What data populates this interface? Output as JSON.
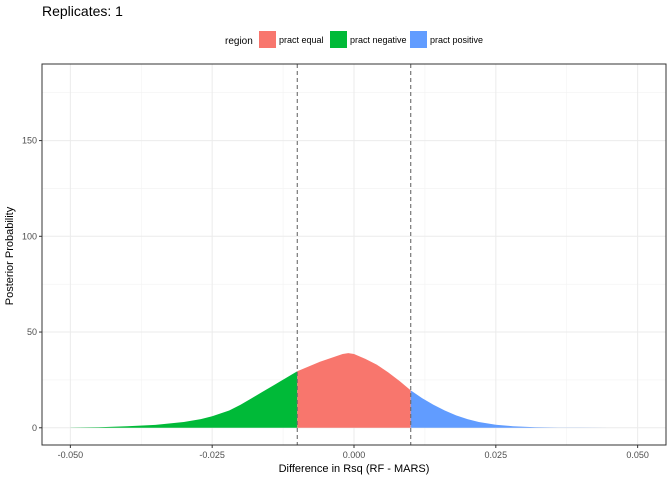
{
  "chart_data": {
    "type": "area",
    "title": "Replicates: 1",
    "xlabel": "Difference in Rsq (RF - MARS)",
    "ylabel": "Posterior Probability",
    "xlim": [
      -0.055,
      0.055
    ],
    "ylim": [
      -9,
      190
    ],
    "x_ticks": [
      -0.05,
      -0.025,
      0.0,
      0.025,
      0.05
    ],
    "x_tick_labels": [
      "-0.050",
      "-0.025",
      "0.000",
      "0.025",
      "0.050"
    ],
    "y_ticks": [
      0,
      50,
      100,
      150
    ],
    "y_tick_labels": [
      "0",
      "50",
      "100",
      "150"
    ],
    "grid": true,
    "reference_lines": [
      -0.01,
      0.01
    ],
    "legend": {
      "title": "region",
      "position": "top",
      "entries": [
        {
          "label": "pract equal",
          "color": "#F8766D"
        },
        {
          "label": "pract negative",
          "color": "#00BA38"
        },
        {
          "label": "pract positive",
          "color": "#619CFF"
        }
      ]
    },
    "regions": [
      {
        "name": "pract negative",
        "color": "#00BA38",
        "from": -0.055,
        "to": -0.01
      },
      {
        "name": "pract equal",
        "color": "#F8766D",
        "from": -0.01,
        "to": 0.01
      },
      {
        "name": "pract positive",
        "color": "#619CFF",
        "from": 0.01,
        "to": 0.055
      }
    ],
    "density": {
      "x": [
        -0.05,
        -0.045,
        -0.04,
        -0.035,
        -0.03,
        -0.027,
        -0.025,
        -0.022,
        -0.02,
        -0.018,
        -0.016,
        -0.014,
        -0.012,
        -0.01,
        -0.008,
        -0.006,
        -0.004,
        -0.002,
        -0.001,
        0.0,
        0.002,
        0.004,
        0.006,
        0.008,
        0.01,
        0.012,
        0.014,
        0.016,
        0.018,
        0.02,
        0.022,
        0.025,
        0.028,
        0.032,
        0.036,
        0.04,
        0.045,
        0.05
      ],
      "y": [
        0.1,
        0.3,
        0.8,
        1.5,
        3.0,
        4.5,
        6.0,
        9.0,
        12.0,
        15.5,
        19.0,
        22.5,
        26.0,
        29.5,
        32.0,
        34.5,
        36.5,
        38.5,
        39.0,
        38.5,
        36.0,
        33.0,
        29.0,
        24.5,
        19.5,
        15.5,
        12.0,
        9.0,
        6.5,
        4.5,
        3.0,
        1.6,
        0.8,
        0.3,
        0.1,
        0.05,
        0.02,
        0.0
      ]
    }
  }
}
